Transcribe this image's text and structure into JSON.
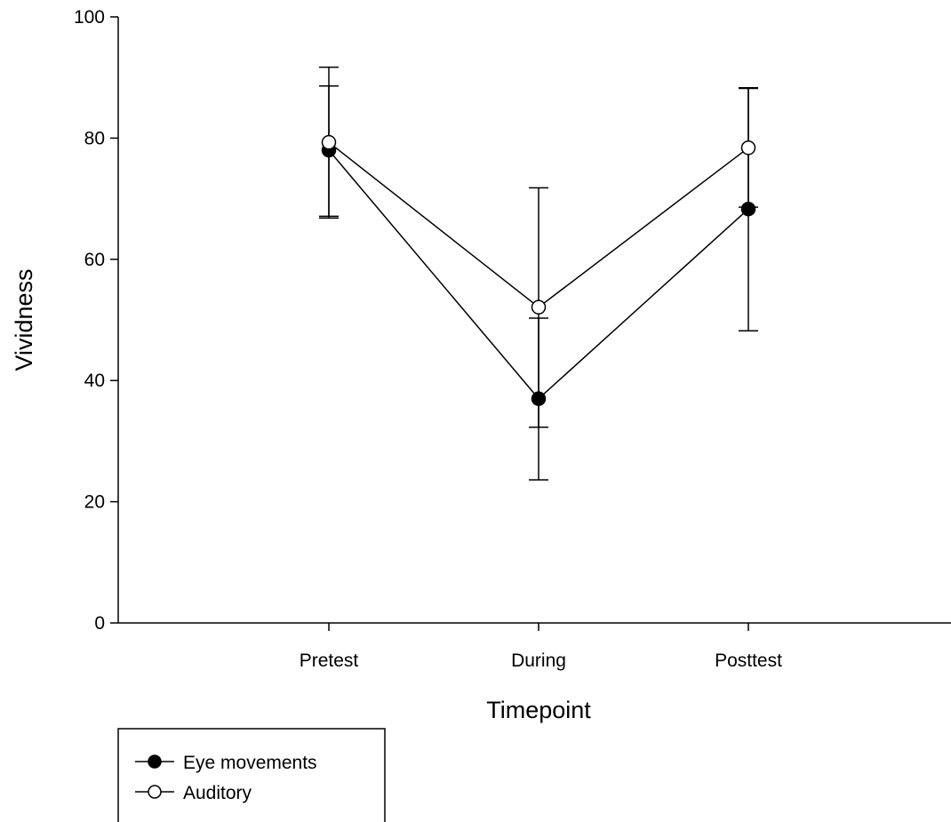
{
  "chart_data": {
    "type": "line",
    "title": "",
    "xlabel": "Timepoint",
    "ylabel": "Vividness",
    "categories": [
      "Pretest",
      "During",
      "Posttest"
    ],
    "ylim": [
      0,
      100
    ],
    "yticks": [
      0,
      20,
      40,
      60,
      80,
      100
    ],
    "grid": false,
    "legend_position": "bottom-left",
    "series": [
      {
        "name": "Eye movements",
        "marker": "filled-circle",
        "color": "#000000",
        "values": [
          78,
          37,
          68.3
        ],
        "error_low": [
          66.8,
          23.6,
          48.2
        ],
        "error_high": [
          88.6,
          50.3,
          88.2
        ]
      },
      {
        "name": "Auditory",
        "marker": "open-circle",
        "color": "#000000",
        "values": [
          79.3,
          52.1,
          78.4
        ],
        "error_low": [
          67.1,
          32.3,
          68.6
        ],
        "error_high": [
          91.7,
          71.8,
          88.3
        ]
      }
    ]
  }
}
